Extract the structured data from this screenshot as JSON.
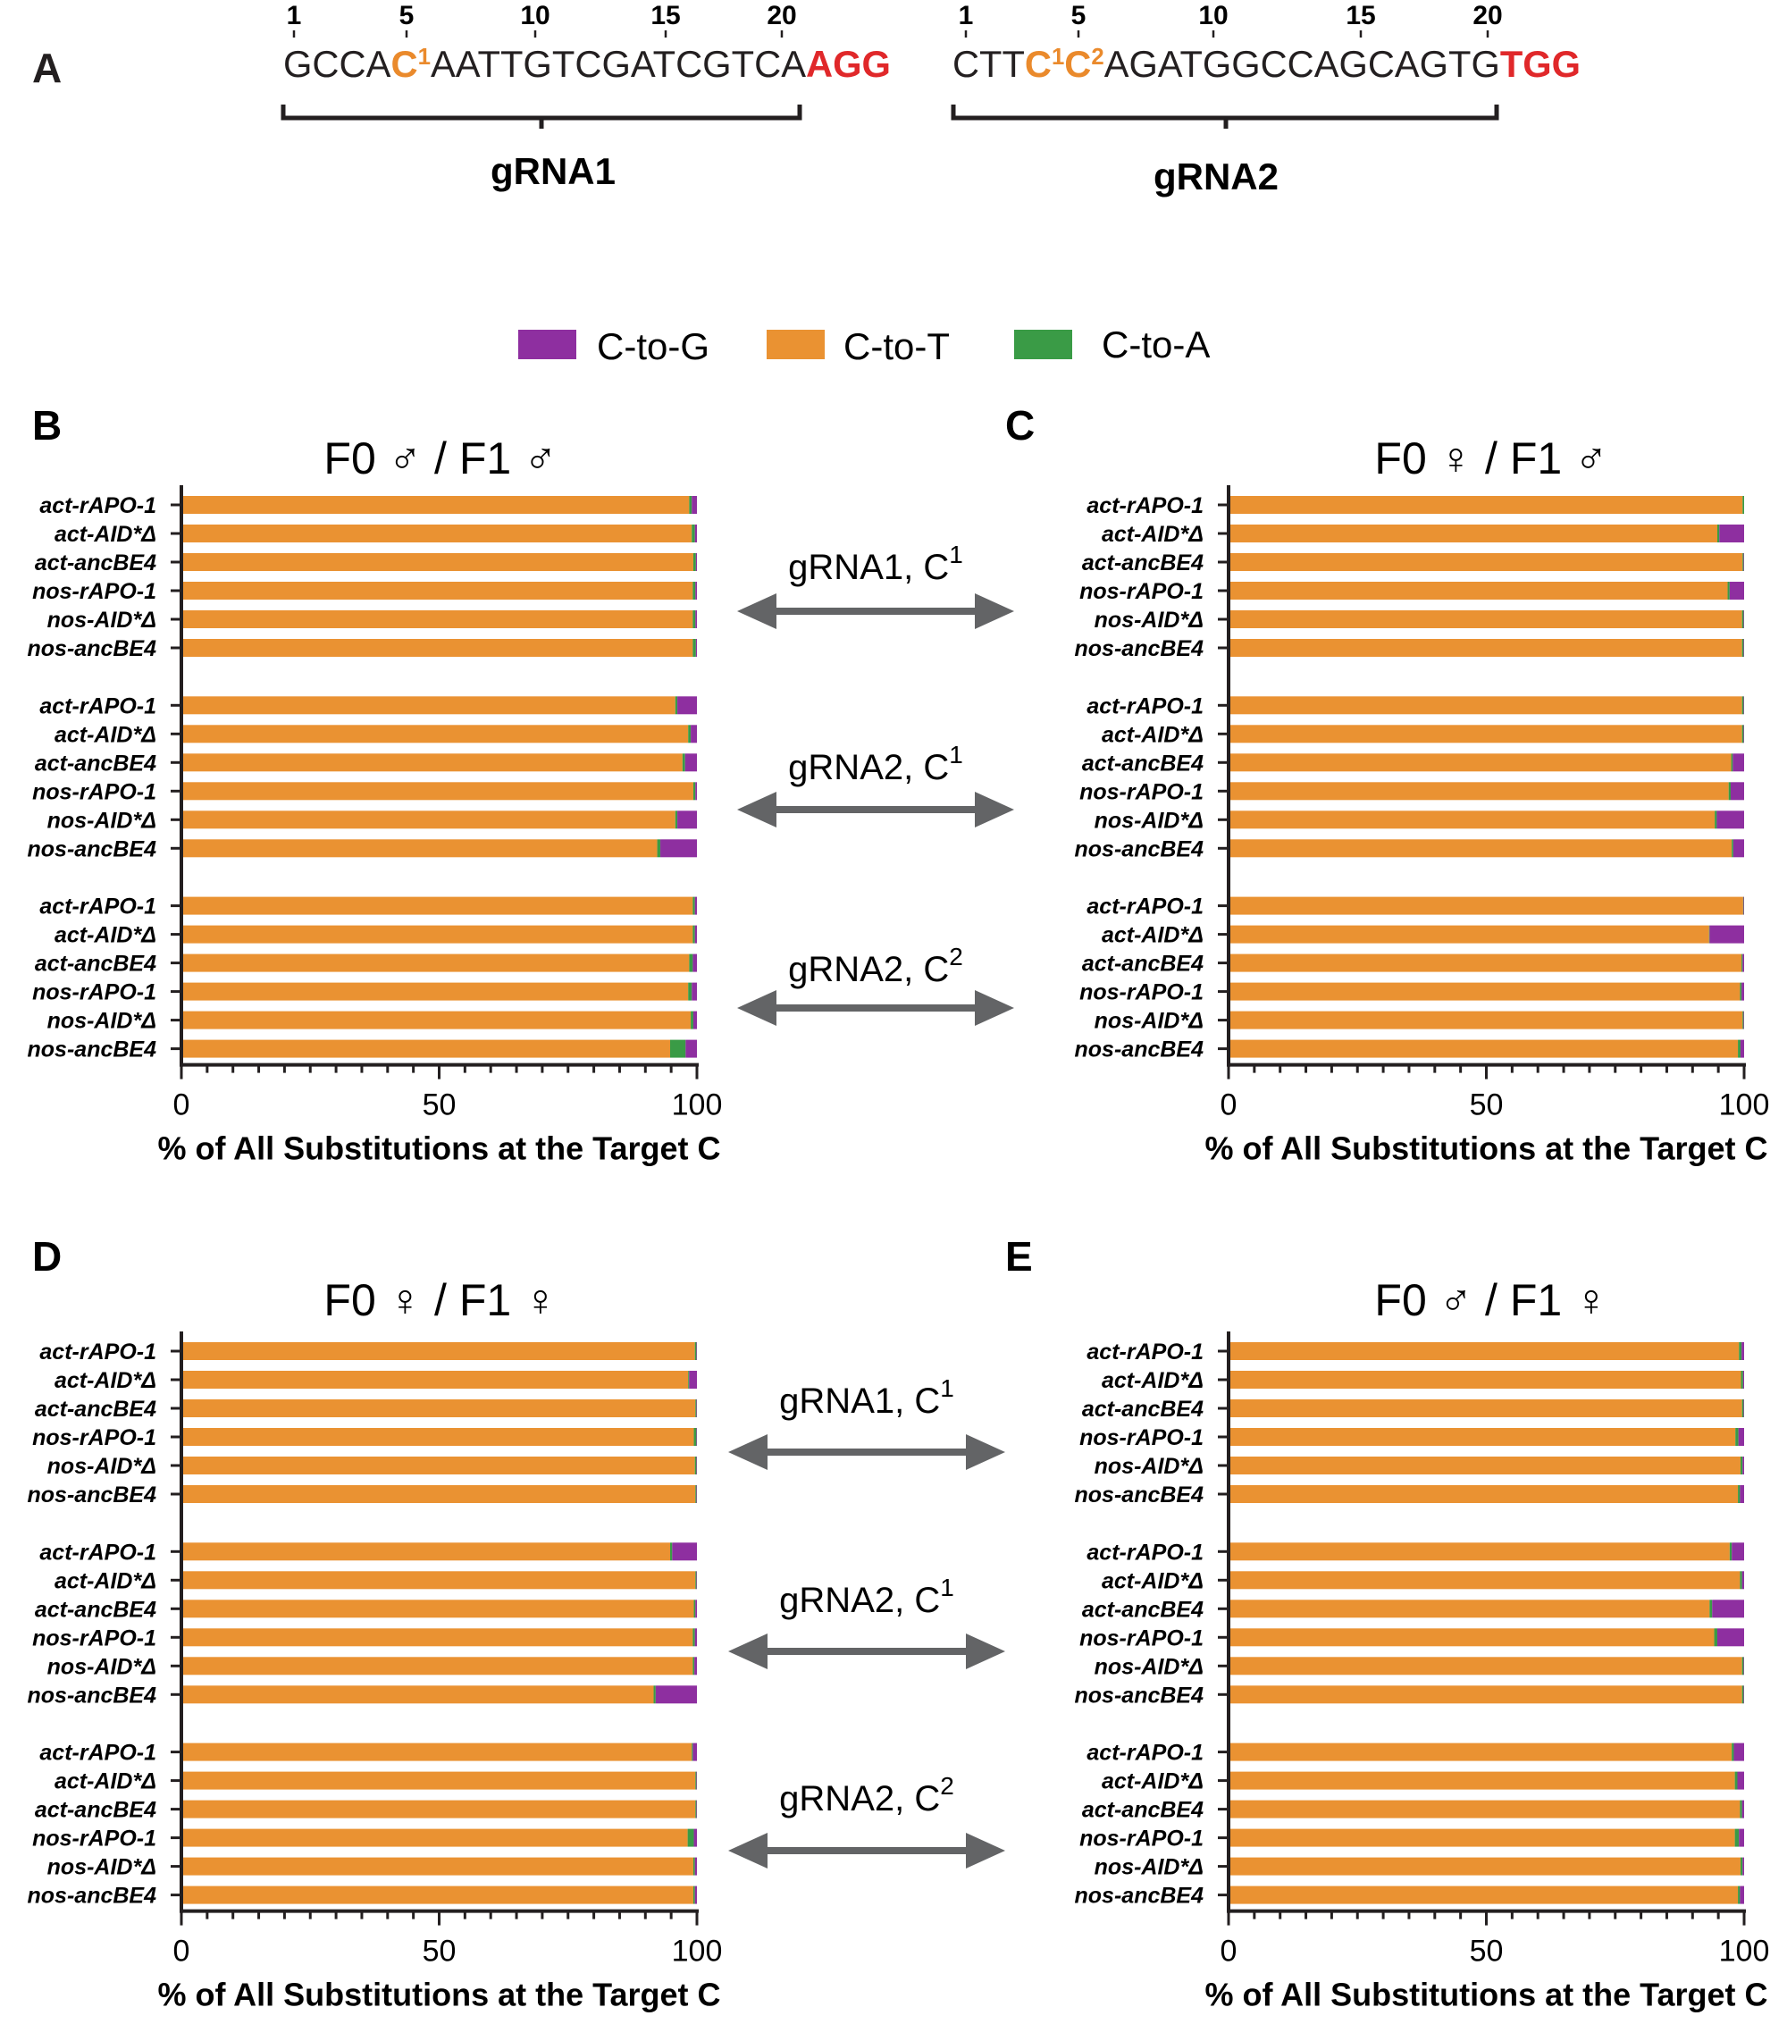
{
  "panel_a": {
    "letter": "A",
    "grnas": [
      {
        "name": "gRNA1",
        "segments": [
          {
            "t": "GCCA",
            "c": "k"
          },
          {
            "t": "C",
            "c": "o"
          },
          {
            "t": "1",
            "c": "o",
            "sup": true
          },
          {
            "t": "AATTGTCGATCGTCA",
            "c": "k"
          },
          {
            "t": "AGG",
            "c": "r"
          }
        ],
        "positions": [
          "1",
          "5",
          "10",
          "15",
          "20"
        ]
      },
      {
        "name": "gRNA2",
        "segments": [
          {
            "t": "CTT",
            "c": "k"
          },
          {
            "t": "C",
            "c": "o"
          },
          {
            "t": "1",
            "c": "o",
            "sup": true
          },
          {
            "t": "C",
            "c": "o"
          },
          {
            "t": "2",
            "c": "o",
            "sup": true
          },
          {
            "t": "AGATGGCCAGCAGTG",
            "c": "k"
          },
          {
            "t": "TGG",
            "c": "r"
          }
        ],
        "positions": [
          "1",
          "5",
          "10",
          "15",
          "20"
        ]
      }
    ]
  },
  "legend": [
    {
      "name": "C-to-G",
      "color": "#8e2fa0"
    },
    {
      "name": "C-to-T",
      "color": "#ea9232"
    },
    {
      "name": "C-to-A",
      "color": "#3a9b46"
    }
  ],
  "colors": {
    "ctog": "#8e2fa0",
    "ctot": "#ea9232",
    "ctoa": "#3a9b46",
    "arrow": "#636466",
    "orange_text": "#ea8a2c",
    "red_text": "#e0282a"
  },
  "groups_middle": [
    {
      "label": "gRNA1, C",
      "sup": "1"
    },
    {
      "label": "gRNA2, C",
      "sup": "1"
    },
    {
      "label": "gRNA2, C",
      "sup": "2"
    }
  ],
  "chart_data": [
    {
      "type": "bar",
      "orientation": "horizontal-stacked",
      "panel": "B",
      "title": "F0 ♂ / F1 ♂",
      "xlabel": "% of All Substitutions at the Target C",
      "xlim": [
        0,
        100
      ],
      "xticks": [
        "0",
        "50",
        "100"
      ],
      "categories": [
        "act-rAPO-1",
        "act-AID*Δ",
        "act-ancBE4",
        "nos-rAPO-1",
        "nos-AID*Δ",
        "nos-ancBE4"
      ],
      "groups": [
        {
          "name": "gRNA1, C1",
          "ctot": [
            98.5,
            99.0,
            99.3,
            99.2,
            99.2,
            99.2
          ],
          "ctoa": [
            0.5,
            0.6,
            0.5,
            0.5,
            0.5,
            0.6
          ],
          "ctog": [
            1.0,
            0.4,
            0.2,
            0.3,
            0.3,
            0.2
          ]
        },
        {
          "name": "gRNA2, C1",
          "ctot": [
            95.8,
            98.3,
            97.2,
            99.3,
            95.8,
            92.3
          ],
          "ctoa": [
            0.4,
            0.5,
            0.5,
            0.4,
            0.4,
            0.6
          ],
          "ctog": [
            3.8,
            1.2,
            2.3,
            0.3,
            3.8,
            7.1
          ]
        },
        {
          "name": "gRNA2, C2",
          "ctot": [
            99.2,
            99.2,
            98.5,
            98.3,
            98.8,
            94.8
          ],
          "ctoa": [
            0.4,
            0.4,
            0.7,
            0.7,
            0.5,
            3.0
          ],
          "ctog": [
            0.4,
            0.4,
            0.8,
            1.0,
            0.7,
            2.2
          ]
        }
      ]
    },
    {
      "type": "bar",
      "orientation": "horizontal-stacked",
      "panel": "C",
      "title": "F0 ♀ / F1 ♂",
      "xlabel": "% of All Substitutions at the Target C",
      "xlim": [
        0,
        100
      ],
      "xticks": [
        "0",
        "50",
        "100"
      ],
      "categories": [
        "act-rAPO-1",
        "act-AID*Δ",
        "act-ancBE4",
        "nos-rAPO-1",
        "nos-AID*Δ",
        "nos-ancBE4"
      ],
      "groups": [
        {
          "name": "gRNA1, C1",
          "ctot": [
            99.7,
            94.8,
            99.7,
            96.8,
            99.6,
            99.6
          ],
          "ctoa": [
            0.3,
            0.4,
            0.2,
            0.4,
            0.3,
            0.3
          ],
          "ctog": [
            0.0,
            4.8,
            0.1,
            2.8,
            0.1,
            0.1
          ]
        },
        {
          "name": "gRNA2, C1",
          "ctot": [
            99.6,
            99.6,
            97.5,
            97.0,
            94.3,
            97.6
          ],
          "ctoa": [
            0.3,
            0.3,
            0.3,
            0.4,
            0.4,
            0.3
          ],
          "ctog": [
            0.1,
            0.1,
            2.2,
            2.6,
            5.3,
            2.1
          ]
        },
        {
          "name": "gRNA2, C2",
          "ctot": [
            99.8,
            93.2,
            99.5,
            99.2,
            99.7,
            98.8
          ],
          "ctoa": [
            0.1,
            0.1,
            0.2,
            0.3,
            0.2,
            0.5
          ],
          "ctog": [
            0.1,
            6.7,
            0.3,
            0.5,
            0.1,
            0.7
          ]
        }
      ]
    },
    {
      "type": "bar",
      "orientation": "horizontal-stacked",
      "panel": "D",
      "title": "F0 ♀ / F1 ♀",
      "xlabel": "% of All Substitutions at the Target C",
      "xlim": [
        0,
        100
      ],
      "xticks": [
        "0",
        "50",
        "100"
      ],
      "categories": [
        "act-rAPO-1",
        "act-AID*Δ",
        "act-ancBE4",
        "nos-rAPO-1",
        "nos-AID*Δ",
        "nos-ancBE4"
      ],
      "groups": [
        {
          "name": "gRNA1, C1",
          "ctot": [
            99.6,
            98.3,
            99.7,
            99.4,
            99.6,
            99.7
          ],
          "ctoa": [
            0.3,
            0.2,
            0.2,
            0.5,
            0.3,
            0.2
          ],
          "ctog": [
            0.1,
            1.5,
            0.1,
            0.1,
            0.1,
            0.1
          ]
        },
        {
          "name": "gRNA2, C1",
          "ctot": [
            94.8,
            99.7,
            99.4,
            99.2,
            99.2,
            91.6
          ],
          "ctoa": [
            0.4,
            0.2,
            0.3,
            0.4,
            0.3,
            0.4
          ],
          "ctog": [
            4.8,
            0.1,
            0.3,
            0.4,
            0.5,
            8.0
          ]
        },
        {
          "name": "gRNA2, C2",
          "ctot": [
            99.0,
            99.7,
            99.7,
            98.2,
            99.3,
            99.3
          ],
          "ctoa": [
            0.2,
            0.2,
            0.2,
            1.2,
            0.3,
            0.3
          ],
          "ctog": [
            0.8,
            0.1,
            0.1,
            0.6,
            0.4,
            0.4
          ]
        }
      ]
    },
    {
      "type": "bar",
      "orientation": "horizontal-stacked",
      "panel": "E",
      "title": "F0 ♂ / F1 ♀",
      "xlabel": "% of All Substitutions at the Target C",
      "xlim": [
        0,
        100
      ],
      "xticks": [
        "0",
        "50",
        "100"
      ],
      "categories": [
        "act-rAPO-1",
        "act-AID*Δ",
        "act-ancBE4",
        "nos-rAPO-1",
        "nos-AID*Δ",
        "nos-ancBE4"
      ],
      "groups": [
        {
          "name": "gRNA1, C1",
          "ctot": [
            99.0,
            99.4,
            99.6,
            98.3,
            99.3,
            98.8
          ],
          "ctoa": [
            0.5,
            0.4,
            0.3,
            0.6,
            0.4,
            0.4
          ],
          "ctog": [
            0.5,
            0.2,
            0.1,
            1.1,
            0.3,
            0.8
          ]
        },
        {
          "name": "gRNA2, C1",
          "ctot": [
            97.2,
            99.2,
            93.3,
            94.2,
            99.6,
            99.6
          ],
          "ctoa": [
            0.4,
            0.4,
            0.5,
            0.6,
            0.3,
            0.3
          ],
          "ctog": [
            2.4,
            0.4,
            6.2,
            5.2,
            0.1,
            0.1
          ]
        },
        {
          "name": "gRNA2, C2",
          "ctot": [
            97.6,
            98.2,
            99.2,
            98.2,
            99.3,
            98.8
          ],
          "ctoa": [
            0.4,
            0.5,
            0.4,
            0.8,
            0.4,
            0.4
          ],
          "ctog": [
            2.0,
            1.3,
            0.4,
            1.0,
            0.3,
            0.8
          ]
        }
      ]
    }
  ]
}
